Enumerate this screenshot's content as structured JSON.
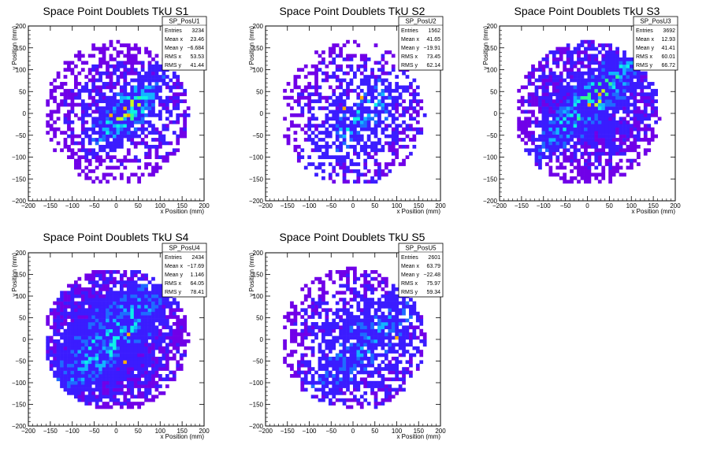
{
  "chart_data": [
    {
      "type": "heatmap",
      "title": "Space Point Doublets TkU S1",
      "xlabel": "x Position (mm)",
      "ylabel": "y Position (mm)",
      "xlim": [
        -200,
        200
      ],
      "ylim": [
        -200,
        200
      ],
      "xticks": [
        "−200",
        "−150",
        "−100",
        "−50",
        "0",
        "50",
        "100",
        "150",
        "200"
      ],
      "yticks": [
        "−200",
        "−150",
        "−100",
        "−50",
        "0",
        "50",
        "100",
        "150",
        "200"
      ],
      "stats": {
        "name": "SP_PosU1",
        "rows": [
          {
            "label": "Entries",
            "value": "3234"
          },
          {
            "label": "Mean x",
            "value": "23.46"
          },
          {
            "label": "Mean y",
            "value": "−6.684"
          },
          {
            "label": "RMS x",
            "value": "53.53"
          },
          {
            "label": "RMS y",
            "value": "41.44"
          }
        ]
      },
      "dist": {
        "cx": 25,
        "cy": 5,
        "rx": 140,
        "ry": 120,
        "density": 0.55,
        "diag": [
          0.8,
          30,
          18
        ],
        "hot": [
          [
            5,
            0
          ],
          [
            -10,
            -5
          ],
          [
            20,
            10
          ]
        ]
      }
    },
    {
      "type": "heatmap",
      "title": "Space Point Doublets TkU S2",
      "xlabel": "x Position (mm)",
      "ylabel": "y Position (mm)",
      "xlim": [
        -200,
        200
      ],
      "ylim": [
        -200,
        200
      ],
      "xticks": [
        "−200",
        "−150",
        "−100",
        "−50",
        "0",
        "50",
        "100",
        "150",
        "200"
      ],
      "yticks": [
        "−200",
        "−150",
        "−100",
        "−50",
        "0",
        "50",
        "100",
        "150",
        "200"
      ],
      "stats": {
        "name": "SP_PosU2",
        "rows": [
          {
            "label": "Entries",
            "value": "1562"
          },
          {
            "label": "Mean x",
            "value": "41.65"
          },
          {
            "label": "Mean y",
            "value": "−19.91"
          },
          {
            "label": "RMS x",
            "value": "73.45"
          },
          {
            "label": "RMS y",
            "value": "62.14"
          }
        ]
      },
      "dist": {
        "cx": 20,
        "cy": -10,
        "rx": 150,
        "ry": 150,
        "density": 0.45,
        "diag": [
          0.35,
          40,
          20
        ],
        "hot": [
          [
            25,
            35
          ],
          [
            -20,
            10
          ]
        ]
      }
    },
    {
      "type": "heatmap",
      "title": "Space Point Doublets TkU S3",
      "xlabel": "x Position (mm)",
      "ylabel": "y Position (mm)",
      "xlim": [
        -200,
        200
      ],
      "ylim": [
        -200,
        200
      ],
      "xticks": [
        "−200",
        "−150",
        "−100",
        "−50",
        "0",
        "50",
        "100",
        "150",
        "200"
      ],
      "yticks": [
        "−200",
        "−150",
        "−100",
        "−50",
        "0",
        "50",
        "100",
        "150",
        "200"
      ],
      "stats": {
        "name": "SP_PosU3",
        "rows": [
          {
            "label": "Entries",
            "value": "3692"
          },
          {
            "label": "Mean x",
            "value": "12.93"
          },
          {
            "label": "Mean y",
            "value": "41.41"
          },
          {
            "label": "RMS x",
            "value": "60.01"
          },
          {
            "label": "RMS y",
            "value": "66.72"
          }
        ]
      },
      "dist": {
        "cx": 10,
        "cy": 30,
        "rx": 155,
        "ry": 150,
        "density": 0.7,
        "diag": [
          0.7,
          50,
          20
        ],
        "hot": [
          [
            10,
            15
          ],
          [
            0,
            10
          ]
        ]
      }
    },
    {
      "type": "heatmap",
      "title": "Space Point Doublets TkU S4",
      "xlabel": "x Position (mm)",
      "ylabel": "y Position (mm)",
      "xlim": [
        -200,
        200
      ],
      "ylim": [
        -200,
        200
      ],
      "xticks": [
        "−200",
        "−150",
        "−100",
        "−50",
        "0",
        "50",
        "100",
        "150",
        "200"
      ],
      "yticks": [
        "−200",
        "−150",
        "−100",
        "−50",
        "0",
        "50",
        "100",
        "150",
        "200"
      ],
      "stats": {
        "name": "SP_PosU4",
        "rows": [
          {
            "label": "Entries",
            "value": "2434"
          },
          {
            "label": "Mean x",
            "value": "−17.69"
          },
          {
            "label": "Mean y",
            "value": "1.146"
          },
          {
            "label": "RMS x",
            "value": "64.05"
          },
          {
            "label": "RMS y",
            "value": "78.41"
          }
        ]
      },
      "dist": {
        "cx": -15,
        "cy": 0,
        "rx": 160,
        "ry": 160,
        "density": 0.8,
        "diag": [
          0.4,
          60,
          30
        ],
        "hot": [
          [
            25,
            -50
          ],
          [
            30,
            10
          ]
        ]
      }
    },
    {
      "type": "heatmap",
      "title": "Space Point Doublets TkU S5",
      "xlabel": "x Position (mm)",
      "ylabel": "y Position (mm)",
      "xlim": [
        -200,
        200
      ],
      "ylim": [
        -200,
        200
      ],
      "xticks": [
        "−200",
        "−150",
        "−100",
        "−50",
        "0",
        "50",
        "100",
        "150",
        "200"
      ],
      "yticks": [
        "−200",
        "−150",
        "−100",
        "−50",
        "0",
        "50",
        "100",
        "150",
        "200"
      ],
      "stats": {
        "name": "SP_PosU5",
        "rows": [
          {
            "label": "Entries",
            "value": "2601"
          },
          {
            "label": "Mean x",
            "value": "63.79"
          },
          {
            "label": "Mean y",
            "value": "−22.48"
          },
          {
            "label": "RMS x",
            "value": "75.97"
          },
          {
            "label": "RMS y",
            "value": "59.34"
          }
        ]
      },
      "dist": {
        "cx": 30,
        "cy": -5,
        "rx": 160,
        "ry": 155,
        "density": 0.55,
        "diag": [
          0.2,
          80,
          30
        ],
        "hot": [
          [
            100,
            5
          ],
          [
            155,
            0
          ]
        ]
      }
    }
  ],
  "colors": {
    "background": "#ffffff",
    "frame": "#000000",
    "palette": [
      "#7000e8",
      "#3b1cff",
      "#1e6cff",
      "#13b4ff",
      "#0df0e8",
      "#30ff90",
      "#c8ff20",
      "#ffb000",
      "#ff2000"
    ]
  }
}
